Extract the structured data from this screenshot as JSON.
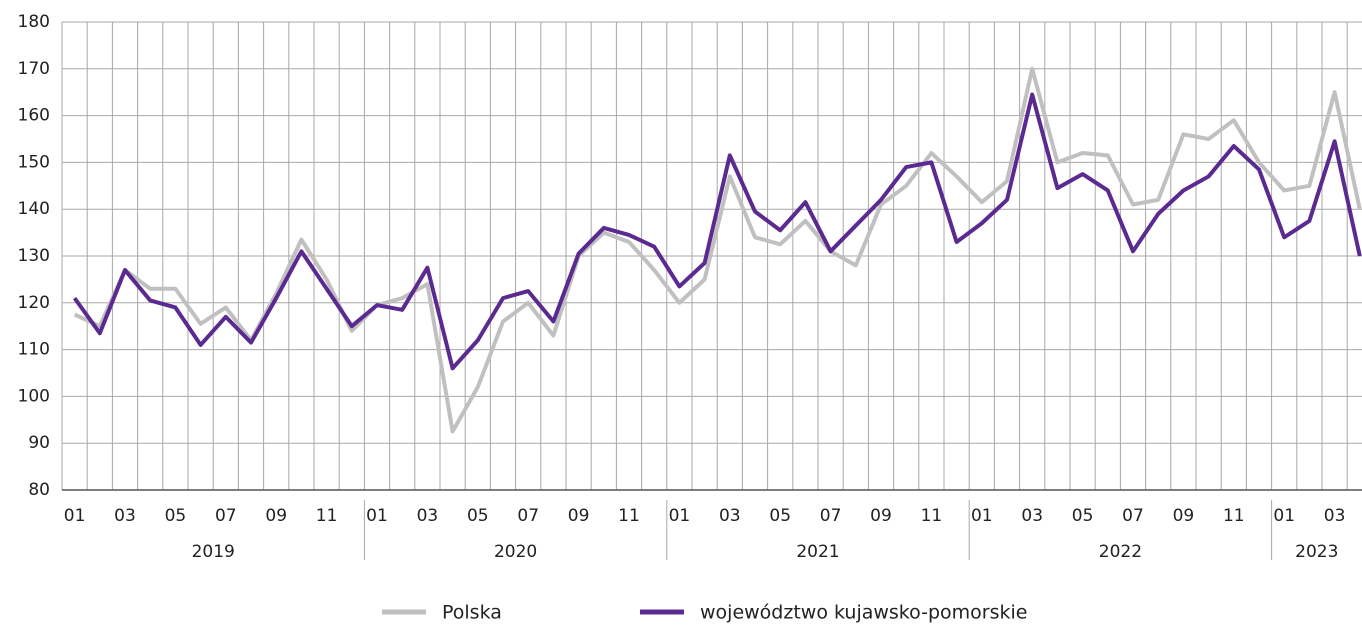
{
  "chart_data": {
    "type": "line",
    "categories": [
      "01",
      null,
      "03",
      null,
      "05",
      null,
      "07",
      null,
      "09",
      null,
      "11",
      null,
      "01",
      null,
      "03",
      null,
      "05",
      null,
      "07",
      null,
      "09",
      null,
      "11",
      null,
      "01",
      null,
      "03",
      null,
      "05",
      null,
      "07",
      null,
      "09",
      null,
      "11",
      null,
      "01",
      null,
      "03",
      null,
      "05",
      null,
      "07",
      null,
      "09",
      null,
      "11",
      null,
      "01",
      null,
      "03",
      null
    ],
    "years": [
      "2019",
      "2020",
      "2021",
      "2022",
      "2023"
    ],
    "series": [
      {
        "name": "Polska",
        "color": "#c0c0c0",
        "values": [
          117.5,
          115,
          127,
          123,
          123,
          115.5,
          119,
          112,
          122,
          133.5,
          125,
          114,
          119.5,
          121,
          124,
          92.5,
          102,
          116,
          120,
          113,
          130,
          135,
          133,
          127,
          120,
          125,
          147,
          134,
          132.5,
          137.5,
          131,
          128,
          141,
          145,
          152,
          147,
          141.5,
          146,
          170,
          150,
          152,
          151.5,
          141,
          142,
          156,
          155,
          159,
          150,
          144,
          145,
          165,
          140
        ]
      },
      {
        "name": "województwo kujawsko-pomorskie",
        "color": "#5b2a91",
        "values": [
          121,
          113.5,
          127,
          120.5,
          119,
          111,
          117,
          111.5,
          121,
          131,
          123,
          115,
          119.5,
          118.5,
          127.5,
          106,
          112,
          121,
          122.5,
          116,
          130.5,
          136,
          134.5,
          132,
          123.5,
          128.5,
          151.5,
          139.5,
          135.5,
          141.5,
          131,
          136.5,
          142,
          149,
          150,
          133,
          137,
          142,
          164.5,
          144.5,
          147.5,
          144,
          131,
          139,
          144,
          147,
          153.5,
          148.5,
          134,
          137.5,
          154.5,
          130
        ]
      }
    ],
    "ylim": [
      80,
      180
    ],
    "yticks": [
      80,
      90,
      100,
      110,
      120,
      130,
      140,
      150,
      160,
      170,
      180
    ],
    "grid": true,
    "legend": "bottom"
  }
}
